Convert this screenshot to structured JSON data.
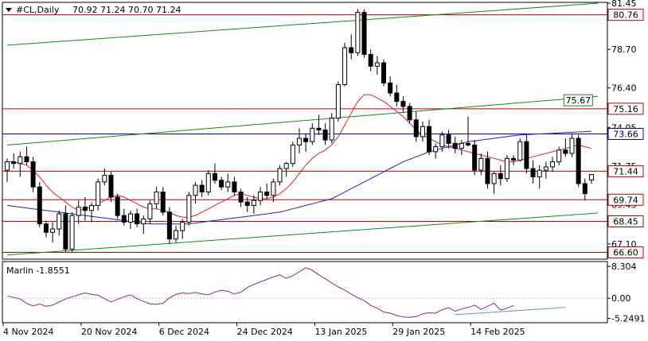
{
  "header": {
    "symbol": "#CL,Daily",
    "ohlc": "70.92 71.24 70.70 71.24"
  },
  "indicator": {
    "label": "Marlin -1.8551",
    "ticks": [
      "8.304",
      "0.00",
      "-5.2491"
    ],
    "tick_values": [
      8.304,
      0.0,
      -5.2491
    ],
    "ylim": [
      -6.4,
      9.6
    ],
    "values": [
      0.6,
      0.2,
      -0.2,
      -1.4,
      -2.0,
      -1.5,
      -2.1,
      -1.8,
      -1.0,
      -0.2,
      0.4,
      0.9,
      1.4,
      1.0,
      0.8,
      -0.1,
      -1.0,
      -0.3,
      0.4,
      0.9,
      -0.1,
      -0.8,
      -1.5,
      -1.6,
      -1.3,
      0.1,
      1.0,
      1.4,
      1.2,
      1.5,
      1.1,
      0.9,
      1.6,
      2.1,
      1.8,
      1.1,
      1.6,
      2.8,
      3.6,
      4.3,
      4.9,
      5.6,
      6.1,
      5.2,
      5.9,
      6.9,
      8.0,
      7.3,
      6.1,
      5.1,
      4.0,
      3.0,
      2.1,
      1.1,
      0.1,
      -0.6,
      -1.9,
      -2.6,
      -3.6,
      -3.9,
      -4.5,
      -4.9,
      -5.0,
      -4.8,
      -4.1,
      -3.8,
      -3.9,
      -3.0,
      -2.5,
      -3.4,
      -2.8,
      -2.4,
      -1.8,
      -2.9,
      -2.1,
      -1.3,
      -3.1,
      -2.6,
      -1.9
    ],
    "trend_line": {
      "from": [
        69,
        -4.3
      ],
      "to": [
        86,
        -2.4
      ],
      "color": "#5aa0a0"
    },
    "color": "#8a2a8a"
  },
  "colors": {
    "bull_fill": "#ffffff",
    "bear_fill": "#000000",
    "ma_short": "#e0202a",
    "ma_long": "#2020c0",
    "channel": "#118c11",
    "resistance": "#c00000",
    "support_blue": "#0000c0"
  },
  "chart_data": {
    "type": "candlestick",
    "ylim": [
      66.2,
      81.5
    ],
    "price_ticks": [
      "81.45",
      "78.70",
      "76.40",
      "74.05",
      "71.75",
      "69.45",
      "67.10"
    ],
    "price_tick_values": [
      81.45,
      78.7,
      76.4,
      74.05,
      71.75,
      69.45,
      67.1
    ],
    "x_labels": [
      {
        "label": "4 Nov 2024",
        "index": 0
      },
      {
        "label": "20 Nov 2024",
        "index": 12
      },
      {
        "label": "6 Dec 2024",
        "index": 24
      },
      {
        "label": "24 Dec 2024",
        "index": 36
      },
      {
        "label": "13 Jan 2025",
        "index": 48
      },
      {
        "label": "29 Jan 2025",
        "index": 60
      },
      {
        "label": "14 Feb 2025",
        "index": 72
      }
    ],
    "levels": [
      {
        "label": "80.76",
        "value": 80.76,
        "color": "#c00000",
        "boxed": true
      },
      {
        "label": "75.16",
        "value": 75.16,
        "color": "#c00000",
        "boxed": true
      },
      {
        "label": "73.66",
        "value": 73.66,
        "color": "#0000c0",
        "boxed": true
      },
      {
        "label": "71.44",
        "value": 71.44,
        "color": "#c00000",
        "boxed": true
      },
      {
        "label": "69.74",
        "value": 69.74,
        "color": "#c00000",
        "boxed": true
      },
      {
        "label": "68.45",
        "value": 68.45,
        "color": "#c00000",
        "boxed": true
      },
      {
        "label": "66.60",
        "value": 66.6,
        "color": "#c00000",
        "boxed": true
      }
    ],
    "channel_label": {
      "label": "75.67",
      "index": 86,
      "value": 75.67
    },
    "channel_lines": [
      {
        "from": [
          0,
          78.95
        ],
        "to": [
          91,
          81.45
        ]
      },
      {
        "from": [
          0,
          73.0
        ],
        "to": [
          91,
          75.9
        ]
      },
      {
        "from": [
          0,
          66.45
        ],
        "to": [
          91,
          68.95
        ]
      }
    ],
    "ohlc": [
      [
        71.5,
        72.2,
        70.8,
        72.0
      ],
      [
        72.0,
        72.5,
        71.6,
        71.9
      ],
      [
        71.9,
        72.6,
        71.1,
        72.3
      ],
      [
        72.3,
        72.9,
        71.8,
        72.0
      ],
      [
        72.0,
        72.3,
        70.2,
        70.5
      ],
      [
        70.5,
        70.8,
        68.1,
        68.3
      ],
      [
        68.3,
        68.5,
        67.5,
        67.8
      ],
      [
        67.8,
        68.4,
        67.2,
        68.0
      ],
      [
        68.0,
        69.1,
        67.6,
        68.9
      ],
      [
        68.9,
        69.4,
        66.6,
        66.8
      ],
      [
        66.8,
        69.0,
        66.6,
        68.8
      ],
      [
        68.8,
        69.7,
        68.3,
        69.3
      ],
      [
        69.3,
        69.9,
        68.5,
        69.1
      ],
      [
        69.1,
        69.6,
        68.4,
        69.4
      ],
      [
        69.4,
        71.0,
        69.1,
        70.8
      ],
      [
        70.8,
        71.6,
        70.6,
        71.2
      ],
      [
        71.2,
        71.4,
        69.6,
        69.9
      ],
      [
        69.9,
        70.1,
        68.6,
        68.8
      ],
      [
        68.8,
        69.2,
        68.2,
        68.4
      ],
      [
        68.4,
        69.1,
        68.0,
        68.9
      ],
      [
        68.9,
        69.2,
        68.1,
        68.3
      ],
      [
        68.3,
        68.8,
        67.7,
        68.6
      ],
      [
        68.6,
        69.7,
        68.3,
        69.5
      ],
      [
        69.5,
        70.5,
        69.2,
        70.2
      ],
      [
        70.2,
        70.5,
        68.8,
        69.0
      ],
      [
        69.0,
        69.3,
        67.1,
        67.4
      ],
      [
        67.4,
        68.2,
        67.2,
        67.9
      ],
      [
        67.9,
        68.6,
        67.4,
        68.4
      ],
      [
        68.4,
        70.2,
        68.2,
        70.0
      ],
      [
        70.0,
        70.8,
        69.5,
        70.6
      ],
      [
        70.6,
        70.9,
        69.9,
        70.2
      ],
      [
        70.2,
        71.5,
        70.0,
        71.3
      ],
      [
        71.3,
        71.9,
        70.7,
        70.9
      ],
      [
        70.9,
        71.1,
        70.3,
        70.5
      ],
      [
        70.5,
        71.3,
        70.2,
        70.8
      ],
      [
        70.8,
        71.1,
        70.0,
        70.2
      ],
      [
        70.2,
        70.4,
        69.3,
        69.6
      ],
      [
        69.6,
        69.9,
        69.0,
        69.4
      ],
      [
        69.4,
        70.0,
        68.9,
        69.7
      ],
      [
        69.7,
        70.5,
        69.4,
        70.2
      ],
      [
        70.2,
        70.7,
        69.8,
        70.0
      ],
      [
        70.0,
        71.0,
        69.6,
        70.8
      ],
      [
        70.8,
        71.8,
        70.6,
        71.6
      ],
      [
        71.6,
        72.0,
        71.1,
        71.9
      ],
      [
        71.9,
        73.2,
        71.7,
        73.0
      ],
      [
        73.0,
        74.0,
        72.5,
        73.4
      ],
      [
        73.4,
        73.7,
        72.6,
        73.2
      ],
      [
        73.2,
        74.3,
        73.0,
        74.0
      ],
      [
        74.0,
        74.8,
        73.6,
        73.9
      ],
      [
        73.9,
        74.3,
        73.0,
        73.3
      ],
      [
        73.3,
        74.9,
        73.1,
        74.6
      ],
      [
        74.6,
        76.8,
        74.4,
        76.6
      ],
      [
        76.6,
        79.1,
        76.5,
        78.8
      ],
      [
        78.8,
        79.6,
        78.1,
        78.5
      ],
      [
        78.5,
        81.1,
        78.3,
        80.9
      ],
      [
        80.9,
        81.1,
        78.2,
        78.4
      ],
      [
        78.4,
        78.7,
        77.4,
        77.7
      ],
      [
        77.7,
        78.3,
        77.2,
        77.9
      ],
      [
        77.9,
        78.1,
        76.5,
        76.7
      ],
      [
        76.7,
        77.1,
        75.9,
        76.1
      ],
      [
        76.1,
        76.6,
        75.3,
        75.6
      ],
      [
        75.6,
        75.9,
        74.9,
        75.3
      ],
      [
        75.3,
        75.5,
        74.3,
        74.5
      ],
      [
        74.5,
        75.0,
        73.2,
        73.5
      ],
      [
        73.5,
        74.4,
        73.2,
        74.1
      ],
      [
        74.1,
        74.5,
        72.4,
        72.6
      ],
      [
        72.6,
        73.1,
        72.2,
        72.9
      ],
      [
        72.9,
        73.8,
        72.6,
        73.6
      ],
      [
        73.6,
        73.9,
        72.8,
        73.1
      ],
      [
        73.1,
        73.5,
        72.5,
        72.8
      ],
      [
        72.8,
        73.3,
        72.4,
        73.1
      ],
      [
        73.1,
        74.7,
        72.9,
        73.0
      ],
      [
        73.0,
        73.3,
        71.2,
        71.5
      ],
      [
        71.5,
        72.5,
        71.2,
        72.2
      ],
      [
        72.2,
        72.6,
        70.4,
        70.7
      ],
      [
        70.7,
        71.4,
        70.1,
        71.3
      ],
      [
        71.3,
        71.8,
        70.6,
        71.0
      ],
      [
        71.0,
        72.4,
        70.8,
        72.2
      ],
      [
        72.2,
        72.4,
        71.8,
        72.1
      ],
      [
        72.1,
        73.4,
        72.0,
        73.2
      ],
      [
        73.2,
        73.6,
        71.3,
        71.6
      ],
      [
        71.6,
        72.1,
        70.7,
        71.1
      ],
      [
        71.1,
        71.8,
        70.4,
        71.5
      ],
      [
        71.5,
        72.0,
        71.0,
        71.7
      ],
      [
        71.7,
        72.3,
        71.4,
        72.0
      ],
      [
        72.0,
        72.9,
        71.8,
        72.7
      ],
      [
        72.7,
        73.4,
        72.3,
        72.5
      ],
      [
        72.5,
        73.7,
        72.3,
        73.4
      ],
      [
        73.4,
        73.6,
        70.5,
        70.7
      ],
      [
        70.7,
        71.0,
        69.7,
        70.1
      ],
      [
        70.92,
        71.24,
        70.7,
        71.24
      ]
    ],
    "ma_short": [
      72.0,
      72.0,
      71.9,
      71.8,
      71.5,
      71.1,
      70.6,
      70.2,
      69.9,
      69.6,
      69.3,
      69.1,
      69.2,
      69.3,
      69.5,
      69.7,
      69.9,
      70.0,
      69.9,
      69.7,
      69.5,
      69.3,
      69.2,
      69.2,
      69.1,
      69.0,
      68.8,
      68.7,
      68.7,
      68.8,
      69.0,
      69.2,
      69.4,
      69.6,
      69.8,
      70.0,
      70.1,
      70.0,
      69.9,
      69.8,
      69.8,
      69.9,
      70.1,
      70.4,
      70.8,
      71.3,
      71.8,
      72.2,
      72.5,
      72.7,
      73.0,
      73.5,
      74.2,
      74.9,
      75.6,
      76.0,
      76.0,
      75.8,
      75.6,
      75.3,
      75.0,
      74.7,
      74.3,
      73.9,
      73.6,
      73.4,
      73.2,
      73.0,
      72.9,
      72.8,
      72.7,
      72.6,
      72.5,
      72.4,
      72.3,
      72.2,
      72.1,
      72.0,
      72.0,
      72.1,
      72.2,
      72.3,
      72.4,
      72.5,
      72.6,
      72.7,
      72.8,
      72.9,
      73.0,
      72.9,
      72.8
    ],
    "ma_long": [
      69.4,
      69.35,
      69.3,
      69.25,
      69.2,
      69.15,
      69.1,
      69.05,
      69.0,
      68.95,
      68.9,
      68.85,
      68.8,
      68.75,
      68.7,
      68.65,
      68.6,
      68.55,
      68.5,
      68.45,
      68.4,
      68.35,
      68.3,
      68.3,
      68.3,
      68.3,
      68.3,
      68.3,
      68.3,
      68.35,
      68.4,
      68.45,
      68.5,
      68.55,
      68.6,
      68.65,
      68.7,
      68.75,
      68.8,
      68.85,
      68.9,
      68.95,
      69.0,
      69.1,
      69.2,
      69.3,
      69.4,
      69.5,
      69.6,
      69.7,
      69.8,
      70.0,
      70.2,
      70.4,
      70.6,
      70.8,
      71.0,
      71.2,
      71.4,
      71.6,
      71.8,
      72.0,
      72.15,
      72.3,
      72.45,
      72.6,
      72.7,
      72.8,
      72.9,
      73.0,
      73.1,
      73.2,
      73.25,
      73.3,
      73.35,
      73.4,
      73.45,
      73.5,
      73.55,
      73.6,
      73.62,
      73.64,
      73.66,
      73.68,
      73.7,
      73.72,
      73.74,
      73.76,
      73.78,
      73.8,
      73.82
    ]
  }
}
